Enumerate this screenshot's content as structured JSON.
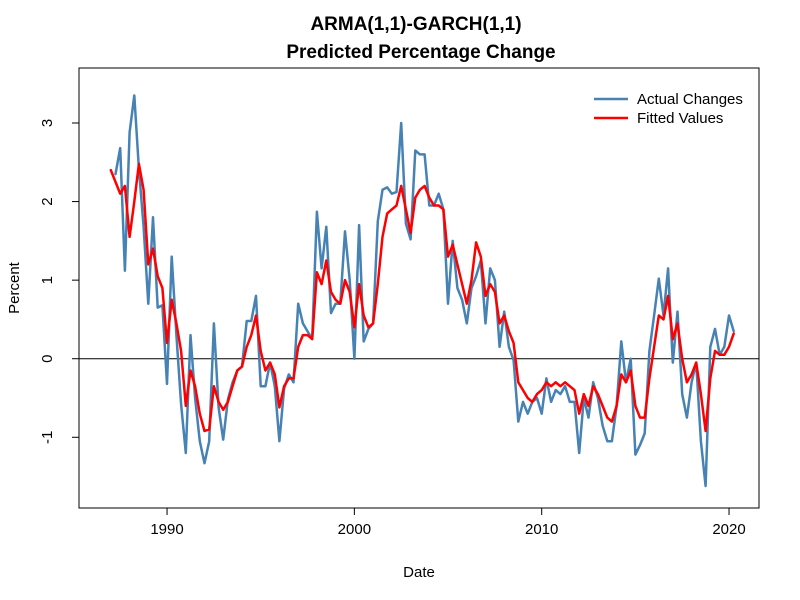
{
  "chart_data": {
    "type": "line",
    "title": "ARMA(1,1)-GARCH(1,1)",
    "subtitle": "Predicted Percentage Change",
    "xlabel": "Date",
    "ylabel": "Percent",
    "xlim": [
      1985.3,
      2021.6
    ],
    "ylim": [
      -1.9,
      3.7
    ],
    "x_ticks": [
      1990,
      2000,
      2010,
      2020
    ],
    "y_ticks": [
      -1,
      0,
      1,
      2,
      3
    ],
    "reference_line": 0,
    "legend_position": "top-right",
    "series": [
      {
        "name": "Actual Changes",
        "color": "#4682B4",
        "points": [
          [
            1987.25,
            2.35
          ],
          [
            1987.5,
            2.68
          ],
          [
            1987.75,
            1.12
          ],
          [
            1988.0,
            2.88
          ],
          [
            1988.25,
            3.35
          ],
          [
            1988.5,
            2.42
          ],
          [
            1988.75,
            1.68
          ],
          [
            1989.0,
            0.7
          ],
          [
            1989.25,
            1.8
          ],
          [
            1989.5,
            0.65
          ],
          [
            1989.75,
            0.68
          ],
          [
            1990.0,
            -0.32
          ],
          [
            1990.25,
            1.3
          ],
          [
            1990.5,
            0.3
          ],
          [
            1990.75,
            -0.58
          ],
          [
            1991.0,
            -1.2
          ],
          [
            1991.25,
            0.3
          ],
          [
            1991.5,
            -0.5
          ],
          [
            1991.75,
            -1.05
          ],
          [
            1992.0,
            -1.33
          ],
          [
            1992.25,
            -1.05
          ],
          [
            1992.5,
            0.45
          ],
          [
            1992.75,
            -0.62
          ],
          [
            1993.0,
            -1.03
          ],
          [
            1993.25,
            -0.52
          ],
          [
            1993.5,
            -0.3
          ],
          [
            1993.75,
            -0.15
          ],
          [
            1994.0,
            -0.1
          ],
          [
            1994.25,
            0.48
          ],
          [
            1994.5,
            0.48
          ],
          [
            1994.75,
            0.8
          ],
          [
            1995.0,
            -0.35
          ],
          [
            1995.25,
            -0.35
          ],
          [
            1995.5,
            -0.05
          ],
          [
            1995.75,
            -0.35
          ],
          [
            1996.0,
            -1.05
          ],
          [
            1996.25,
            -0.38
          ],
          [
            1996.5,
            -0.2
          ],
          [
            1996.75,
            -0.3
          ],
          [
            1997.0,
            0.7
          ],
          [
            1997.25,
            0.45
          ],
          [
            1997.5,
            0.35
          ],
          [
            1997.75,
            0.25
          ],
          [
            1998.0,
            1.87
          ],
          [
            1998.25,
            1.15
          ],
          [
            1998.5,
            1.68
          ],
          [
            1998.75,
            0.58
          ],
          [
            1999.0,
            0.7
          ],
          [
            1999.25,
            0.7
          ],
          [
            1999.5,
            1.62
          ],
          [
            1999.75,
            1.0
          ],
          [
            2000.0,
            0.0
          ],
          [
            2000.25,
            1.7
          ],
          [
            2000.5,
            0.22
          ],
          [
            2000.75,
            0.38
          ],
          [
            2001.0,
            0.45
          ],
          [
            2001.25,
            1.75
          ],
          [
            2001.5,
            2.15
          ],
          [
            2001.75,
            2.18
          ],
          [
            2002.0,
            2.1
          ],
          [
            2002.25,
            2.12
          ],
          [
            2002.5,
            3.0
          ],
          [
            2002.75,
            1.72
          ],
          [
            2003.0,
            1.52
          ],
          [
            2003.25,
            2.65
          ],
          [
            2003.5,
            2.6
          ],
          [
            2003.75,
            2.6
          ],
          [
            2004.0,
            1.95
          ],
          [
            2004.25,
            1.95
          ],
          [
            2004.5,
            2.1
          ],
          [
            2004.75,
            1.9
          ],
          [
            2005.0,
            0.7
          ],
          [
            2005.25,
            1.5
          ],
          [
            2005.5,
            0.9
          ],
          [
            2005.75,
            0.75
          ],
          [
            2006.0,
            0.45
          ],
          [
            2006.25,
            0.9
          ],
          [
            2006.5,
            1.05
          ],
          [
            2006.75,
            1.25
          ],
          [
            2007.0,
            0.45
          ],
          [
            2007.25,
            1.15
          ],
          [
            2007.5,
            1.0
          ],
          [
            2007.75,
            0.15
          ],
          [
            2008.0,
            0.6
          ],
          [
            2008.25,
            0.15
          ],
          [
            2008.5,
            -0.02
          ],
          [
            2008.75,
            -0.8
          ],
          [
            2009.0,
            -0.55
          ],
          [
            2009.25,
            -0.7
          ],
          [
            2009.5,
            -0.55
          ],
          [
            2009.75,
            -0.5
          ],
          [
            2010.0,
            -0.7
          ],
          [
            2010.25,
            -0.25
          ],
          [
            2010.5,
            -0.55
          ],
          [
            2010.75,
            -0.4
          ],
          [
            2011.0,
            -0.45
          ],
          [
            2011.25,
            -0.35
          ],
          [
            2011.5,
            -0.55
          ],
          [
            2011.75,
            -0.55
          ],
          [
            2012.0,
            -1.2
          ],
          [
            2012.25,
            -0.5
          ],
          [
            2012.5,
            -0.75
          ],
          [
            2012.75,
            -0.3
          ],
          [
            2013.0,
            -0.5
          ],
          [
            2013.25,
            -0.85
          ],
          [
            2013.5,
            -1.05
          ],
          [
            2013.75,
            -1.05
          ],
          [
            2014.0,
            -0.6
          ],
          [
            2014.25,
            0.22
          ],
          [
            2014.5,
            -0.3
          ],
          [
            2014.75,
            0.0
          ],
          [
            2015.0,
            -1.22
          ],
          [
            2015.25,
            -1.1
          ],
          [
            2015.5,
            -0.95
          ],
          [
            2015.75,
            0.1
          ],
          [
            2016.0,
            0.55
          ],
          [
            2016.25,
            1.02
          ],
          [
            2016.5,
            0.55
          ],
          [
            2016.75,
            1.15
          ],
          [
            2017.0,
            -0.05
          ],
          [
            2017.25,
            0.6
          ],
          [
            2017.5,
            -0.45
          ],
          [
            2017.75,
            -0.75
          ],
          [
            2018.0,
            -0.3
          ],
          [
            2018.25,
            -0.05
          ],
          [
            2018.5,
            -1.05
          ],
          [
            2018.75,
            -1.62
          ],
          [
            2019.0,
            0.15
          ],
          [
            2019.25,
            0.38
          ],
          [
            2019.5,
            0.05
          ],
          [
            2019.75,
            0.15
          ],
          [
            2020.0,
            0.55
          ],
          [
            2020.25,
            0.35
          ]
        ]
      },
      {
        "name": "Fitted Values",
        "color": "#FF0000",
        "points": [
          [
            1987.0,
            2.4
          ],
          [
            1987.25,
            2.25
          ],
          [
            1987.5,
            2.1
          ],
          [
            1987.75,
            2.2
          ],
          [
            1988.0,
            1.55
          ],
          [
            1988.25,
            2.0
          ],
          [
            1988.5,
            2.48
          ],
          [
            1988.75,
            2.15
          ],
          [
            1989.0,
            1.2
          ],
          [
            1989.25,
            1.4
          ],
          [
            1989.5,
            1.05
          ],
          [
            1989.75,
            0.9
          ],
          [
            1990.0,
            0.2
          ],
          [
            1990.25,
            0.75
          ],
          [
            1990.5,
            0.45
          ],
          [
            1990.75,
            0.1
          ],
          [
            1991.0,
            -0.6
          ],
          [
            1991.25,
            -0.15
          ],
          [
            1991.5,
            -0.35
          ],
          [
            1991.75,
            -0.7
          ],
          [
            1992.0,
            -0.92
          ],
          [
            1992.25,
            -0.9
          ],
          [
            1992.5,
            -0.35
          ],
          [
            1992.75,
            -0.55
          ],
          [
            1993.0,
            -0.65
          ],
          [
            1993.25,
            -0.55
          ],
          [
            1993.5,
            -0.35
          ],
          [
            1993.75,
            -0.15
          ],
          [
            1994.0,
            -0.1
          ],
          [
            1994.25,
            0.15
          ],
          [
            1994.5,
            0.3
          ],
          [
            1994.75,
            0.55
          ],
          [
            1995.0,
            0.1
          ],
          [
            1995.25,
            -0.15
          ],
          [
            1995.5,
            -0.05
          ],
          [
            1995.75,
            -0.2
          ],
          [
            1996.0,
            -0.62
          ],
          [
            1996.25,
            -0.35
          ],
          [
            1996.5,
            -0.25
          ],
          [
            1996.75,
            -0.25
          ],
          [
            1997.0,
            0.15
          ],
          [
            1997.25,
            0.3
          ],
          [
            1997.5,
            0.3
          ],
          [
            1997.75,
            0.25
          ],
          [
            1998.0,
            1.1
          ],
          [
            1998.25,
            0.95
          ],
          [
            1998.5,
            1.25
          ],
          [
            1998.75,
            0.85
          ],
          [
            1999.0,
            0.75
          ],
          [
            1999.25,
            0.7
          ],
          [
            1999.5,
            1.0
          ],
          [
            1999.75,
            0.85
          ],
          [
            2000.0,
            0.4
          ],
          [
            2000.25,
            0.95
          ],
          [
            2000.5,
            0.55
          ],
          [
            2000.75,
            0.4
          ],
          [
            2001.0,
            0.45
          ],
          [
            2001.25,
            0.95
          ],
          [
            2001.5,
            1.55
          ],
          [
            2001.75,
            1.85
          ],
          [
            2002.0,
            1.9
          ],
          [
            2002.25,
            1.95
          ],
          [
            2002.5,
            2.2
          ],
          [
            2002.75,
            1.9
          ],
          [
            2003.0,
            1.6
          ],
          [
            2003.25,
            2.05
          ],
          [
            2003.5,
            2.15
          ],
          [
            2003.75,
            2.2
          ],
          [
            2004.0,
            2.05
          ],
          [
            2004.25,
            1.95
          ],
          [
            2004.5,
            1.95
          ],
          [
            2004.75,
            1.9
          ],
          [
            2005.0,
            1.3
          ],
          [
            2005.25,
            1.45
          ],
          [
            2005.5,
            1.2
          ],
          [
            2005.75,
            0.95
          ],
          [
            2006.0,
            0.7
          ],
          [
            2006.25,
            1.0
          ],
          [
            2006.5,
            1.48
          ],
          [
            2006.75,
            1.3
          ],
          [
            2007.0,
            0.8
          ],
          [
            2007.25,
            0.95
          ],
          [
            2007.5,
            0.85
          ],
          [
            2007.75,
            0.45
          ],
          [
            2008.0,
            0.55
          ],
          [
            2008.25,
            0.35
          ],
          [
            2008.5,
            0.2
          ],
          [
            2008.75,
            -0.3
          ],
          [
            2009.0,
            -0.4
          ],
          [
            2009.25,
            -0.5
          ],
          [
            2009.5,
            -0.55
          ],
          [
            2009.75,
            -0.45
          ],
          [
            2010.0,
            -0.4
          ],
          [
            2010.25,
            -0.3
          ],
          [
            2010.5,
            -0.35
          ],
          [
            2010.75,
            -0.3
          ],
          [
            2011.0,
            -0.35
          ],
          [
            2011.25,
            -0.3
          ],
          [
            2011.5,
            -0.35
          ],
          [
            2011.75,
            -0.4
          ],
          [
            2012.0,
            -0.7
          ],
          [
            2012.25,
            -0.45
          ],
          [
            2012.5,
            -0.6
          ],
          [
            2012.75,
            -0.35
          ],
          [
            2013.0,
            -0.45
          ],
          [
            2013.25,
            -0.6
          ],
          [
            2013.5,
            -0.75
          ],
          [
            2013.75,
            -0.8
          ],
          [
            2014.0,
            -0.6
          ],
          [
            2014.25,
            -0.2
          ],
          [
            2014.5,
            -0.3
          ],
          [
            2014.75,
            -0.15
          ],
          [
            2015.0,
            -0.6
          ],
          [
            2015.25,
            -0.75
          ],
          [
            2015.5,
            -0.75
          ],
          [
            2015.75,
            -0.25
          ],
          [
            2016.0,
            0.15
          ],
          [
            2016.25,
            0.55
          ],
          [
            2016.5,
            0.5
          ],
          [
            2016.75,
            0.8
          ],
          [
            2017.0,
            0.25
          ],
          [
            2017.25,
            0.45
          ],
          [
            2017.5,
            0.0
          ],
          [
            2017.75,
            -0.3
          ],
          [
            2018.0,
            -0.2
          ],
          [
            2018.25,
            -0.05
          ],
          [
            2018.5,
            -0.45
          ],
          [
            2018.75,
            -0.92
          ],
          [
            2019.0,
            -0.25
          ],
          [
            2019.25,
            0.1
          ],
          [
            2019.5,
            0.05
          ],
          [
            2019.75,
            0.05
          ],
          [
            2020.0,
            0.15
          ],
          [
            2020.25,
            0.32
          ]
        ]
      }
    ]
  }
}
